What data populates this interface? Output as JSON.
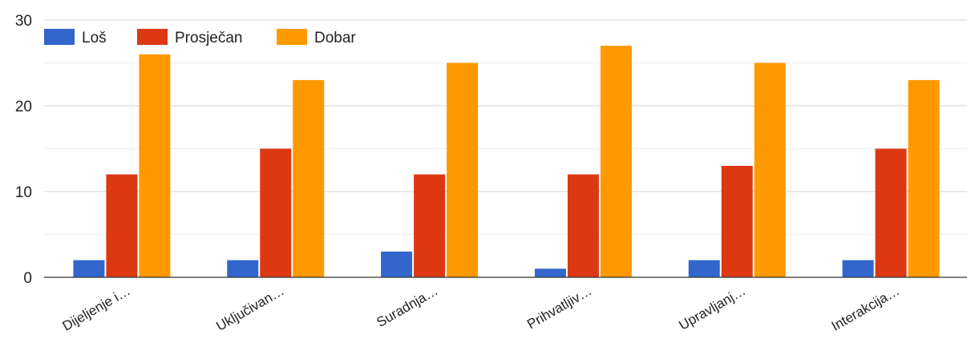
{
  "chart_data": {
    "type": "bar",
    "title": "",
    "xlabel": "",
    "ylabel": "",
    "categories": [
      "Dijeljenje i…",
      "Uključivan…",
      "Suradnja…",
      "Prihvatljiv…",
      "Upravljanj…",
      "Interakcija…"
    ],
    "series": [
      {
        "name": "Loš",
        "color": "#3366cc",
        "values": [
          2,
          2,
          3,
          1,
          2,
          2
        ]
      },
      {
        "name": "Prosječan",
        "color": "#dc3912",
        "values": [
          12,
          15,
          12,
          12,
          13,
          15
        ]
      },
      {
        "name": "Dobar",
        "color": "#ff9900",
        "values": [
          26,
          23,
          25,
          27,
          25,
          23
        ]
      }
    ],
    "ylim": [
      0,
      30
    ],
    "yticks": [
      0,
      10,
      20,
      30
    ],
    "grid": true,
    "legend_position": "top-left"
  }
}
